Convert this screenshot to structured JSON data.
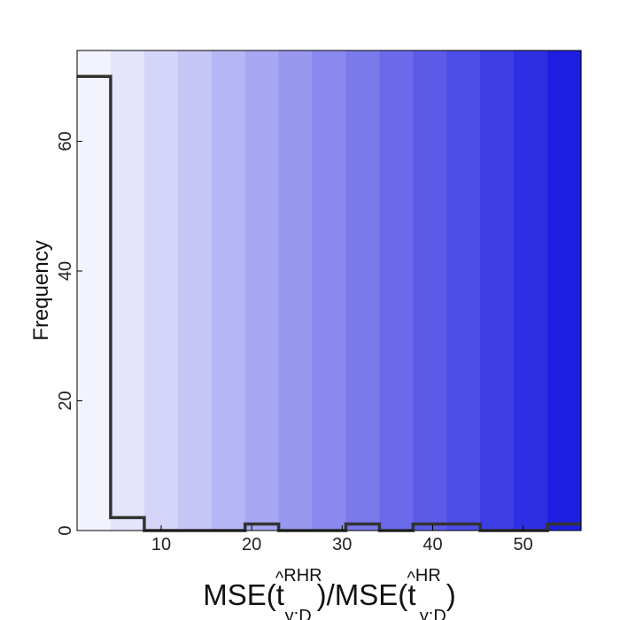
{
  "chart_data": {
    "type": "histogram",
    "xlabel": {
      "prefix": "MSE(",
      "var1": "t",
      "hat": "^",
      "sup1": "RHR",
      "sub1": "y:D",
      "mid": ")/MSE(",
      "var2": "t",
      "sup2": "HR",
      "sub2": "y:D",
      "suffix": ")"
    },
    "ylabel": "Frequency",
    "xlim": [
      0.7,
      56.4
    ],
    "ylim": [
      0,
      74
    ],
    "xticks": [
      10,
      20,
      30,
      40,
      50
    ],
    "yticks": [
      0,
      20,
      40,
      60
    ],
    "bin_edges": [
      0.7,
      4.41,
      8.13,
      11.84,
      15.55,
      19.27,
      22.98,
      26.69,
      30.41,
      34.12,
      37.83,
      41.55,
      45.26,
      48.97,
      52.69,
      56.4
    ],
    "counts": [
      70,
      2,
      0,
      0,
      0,
      1,
      0,
      0,
      1,
      0,
      1,
      1,
      0,
      0,
      1
    ],
    "background_band_colors": [
      "#f3f3fd",
      "#e4e4fb",
      "#d5d5f9",
      "#c6c6f7",
      "#b6b6f5",
      "#a7a7f3",
      "#9898f1",
      "#8989ef",
      "#7a7aed",
      "#6a6aea",
      "#5b5be8",
      "#4c4ce6",
      "#3d3de4",
      "#2e2ee2",
      "#1e1ee0"
    ],
    "line_color": "#333333"
  }
}
